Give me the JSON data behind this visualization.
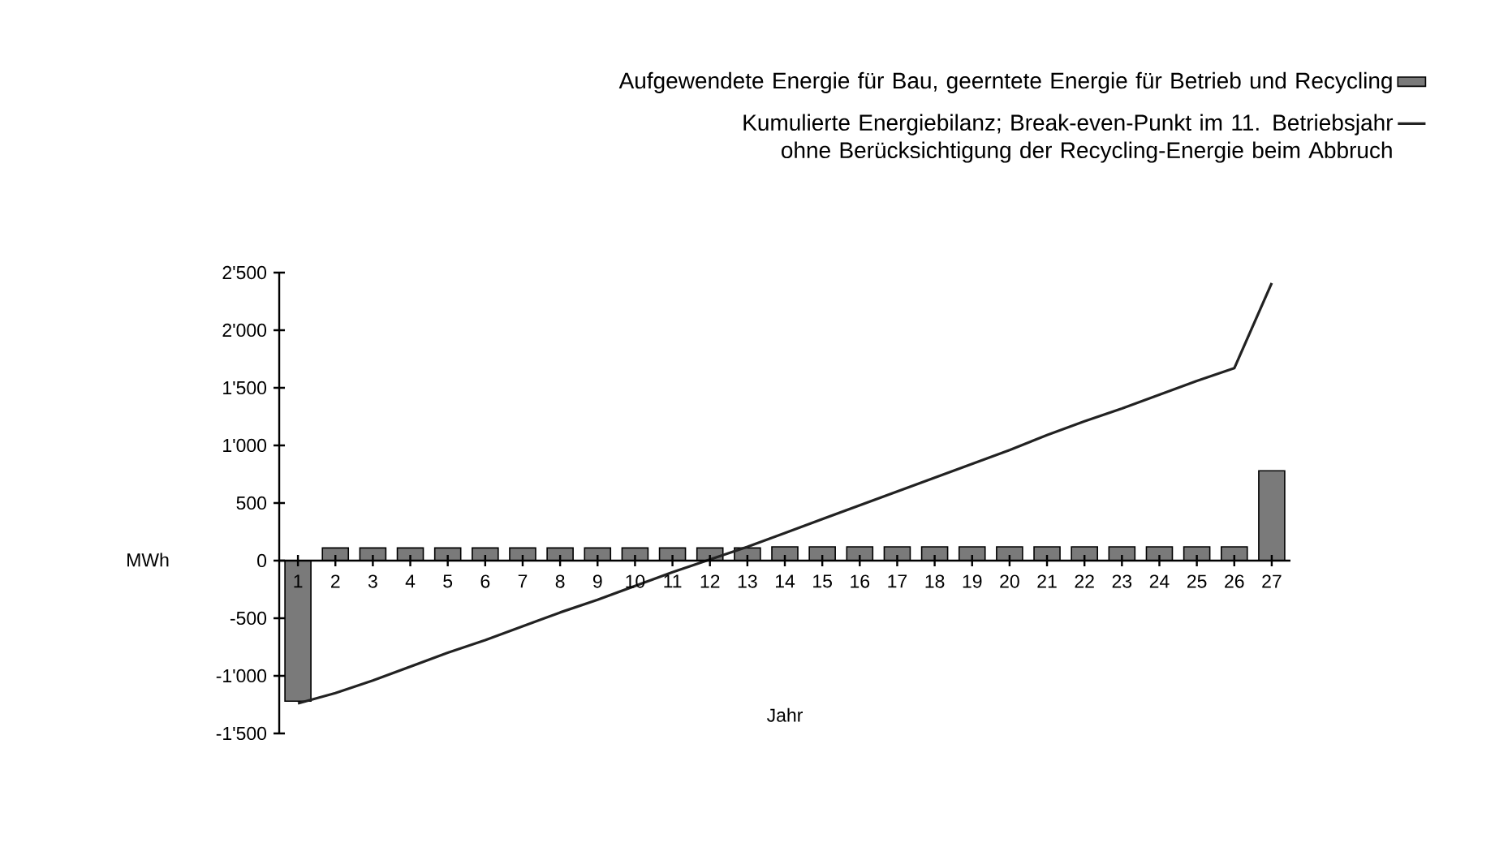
{
  "chart_data": {
    "type": "bar",
    "categories": [
      "1",
      "2",
      "3",
      "4",
      "5",
      "6",
      "7",
      "8",
      "9",
      "10",
      "11",
      "12",
      "13",
      "14",
      "15",
      "16",
      "17",
      "18",
      "19",
      "20",
      "21",
      "22",
      "23",
      "24",
      "25",
      "26",
      "27"
    ],
    "series": [
      {
        "type": "bar",
        "name": "Aufgewendete Energie für Bau, geerntete Energie für Betrieb und Recycling",
        "color": "#7a7a7a",
        "values": [
          -1220,
          110,
          110,
          110,
          110,
          110,
          110,
          110,
          110,
          110,
          110,
          110,
          110,
          120,
          120,
          120,
          120,
          120,
          120,
          120,
          120,
          120,
          120,
          120,
          120,
          120,
          780
        ]
      },
      {
        "type": "line",
        "name": "Kumulierte Energiebilanz; Break-even-Punkt im 11. Betriebsjahr ohne Berücksichtigung der Recycling-Energie beim Abbruch",
        "color": "#222222",
        "values": [
          -1240,
          -1150,
          -1040,
          -920,
          -800,
          -690,
          -570,
          -450,
          -340,
          -220,
          -100,
          10,
          120,
          240,
          360,
          480,
          600,
          720,
          840,
          960,
          1090,
          1210,
          1320,
          1440,
          1560,
          1670,
          2410
        ]
      }
    ],
    "xlabel": "Jahr",
    "ylabel": "MWh",
    "ylim": [
      -1500,
      2500
    ],
    "yticks": [
      {
        "value": -1500,
        "label": "-1'500"
      },
      {
        "value": -1000,
        "label": "-1'000"
      },
      {
        "value": -500,
        "label": "-500"
      },
      {
        "value": 0,
        "label": "0"
      },
      {
        "value": 500,
        "label": "500"
      },
      {
        "value": 1000,
        "label": "1'000"
      },
      {
        "value": 1500,
        "label": "1'500"
      },
      {
        "value": 2000,
        "label": "2'000"
      },
      {
        "value": 2500,
        "label": "2'500"
      }
    ],
    "legend": "top right"
  }
}
